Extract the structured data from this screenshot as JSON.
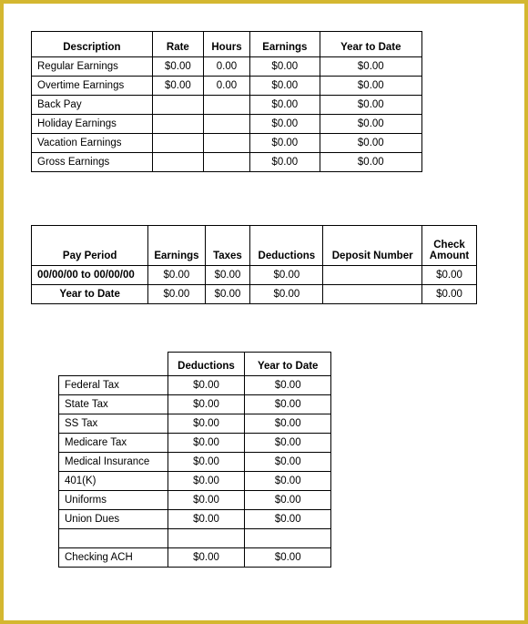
{
  "earnings_table": {
    "headers": {
      "description": "Description",
      "rate": "Rate",
      "hours": "Hours",
      "earnings": "Earnings",
      "ytd": "Year to Date"
    },
    "rows": [
      {
        "desc": "Regular Earnings",
        "rate": "$0.00",
        "hours": "0.00",
        "earnings": "$0.00",
        "ytd": "$0.00"
      },
      {
        "desc": "Overtime Earnings",
        "rate": "$0.00",
        "hours": "0.00",
        "earnings": "$0.00",
        "ytd": "$0.00"
      },
      {
        "desc": "Back Pay",
        "rate": "",
        "hours": "",
        "earnings": "$0.00",
        "ytd": "$0.00"
      },
      {
        "desc": "Holiday Earnings",
        "rate": "",
        "hours": "",
        "earnings": "$0.00",
        "ytd": "$0.00"
      },
      {
        "desc": "Vacation Earnings",
        "rate": "",
        "hours": "",
        "earnings": "$0.00",
        "ytd": "$0.00"
      },
      {
        "desc": "Gross Earnings",
        "rate": "",
        "hours": "",
        "earnings": "$0.00",
        "ytd": "$0.00"
      }
    ]
  },
  "summary_table": {
    "headers": {
      "pay_period": "Pay Period",
      "earnings": "Earnings",
      "taxes": "Taxes",
      "deductions": "Deductions",
      "deposit": "Deposit Number",
      "check": "Check Amount"
    },
    "rows": [
      {
        "period": "00/00/00 to 00/00/00",
        "earnings": "$0.00",
        "taxes": "$0.00",
        "deductions": "$0.00",
        "deposit": "",
        "check": "$0.00"
      },
      {
        "period": "Year to Date",
        "earnings": "$0.00",
        "taxes": "$0.00",
        "deductions": "$0.00",
        "deposit": "",
        "check": "$0.00"
      }
    ]
  },
  "deductions_table": {
    "headers": {
      "blank": "",
      "deductions": "Deductions",
      "ytd": "Year to Date"
    },
    "rows": [
      {
        "desc": "Federal Tax",
        "ded": "$0.00",
        "ytd": "$0.00"
      },
      {
        "desc": "State Tax",
        "ded": "$0.00",
        "ytd": "$0.00"
      },
      {
        "desc": "SS Tax",
        "ded": "$0.00",
        "ytd": "$0.00"
      },
      {
        "desc": "Medicare Tax",
        "ded": "$0.00",
        "ytd": "$0.00"
      },
      {
        "desc": "Medical Insurance",
        "ded": "$0.00",
        "ytd": "$0.00"
      },
      {
        "desc": "401(K)",
        "ded": "$0.00",
        "ytd": "$0.00"
      },
      {
        "desc": "Uniforms",
        "ded": "$0.00",
        "ytd": "$0.00"
      },
      {
        "desc": "Union Dues",
        "ded": "$0.00",
        "ytd": "$0.00"
      }
    ],
    "footer": {
      "desc": "Checking ACH",
      "ded": "$0.00",
      "ytd": "$0.00"
    }
  },
  "style": {
    "border_color": "#d4b730",
    "text_color": "#000000",
    "font_size_pt": 11.5
  }
}
